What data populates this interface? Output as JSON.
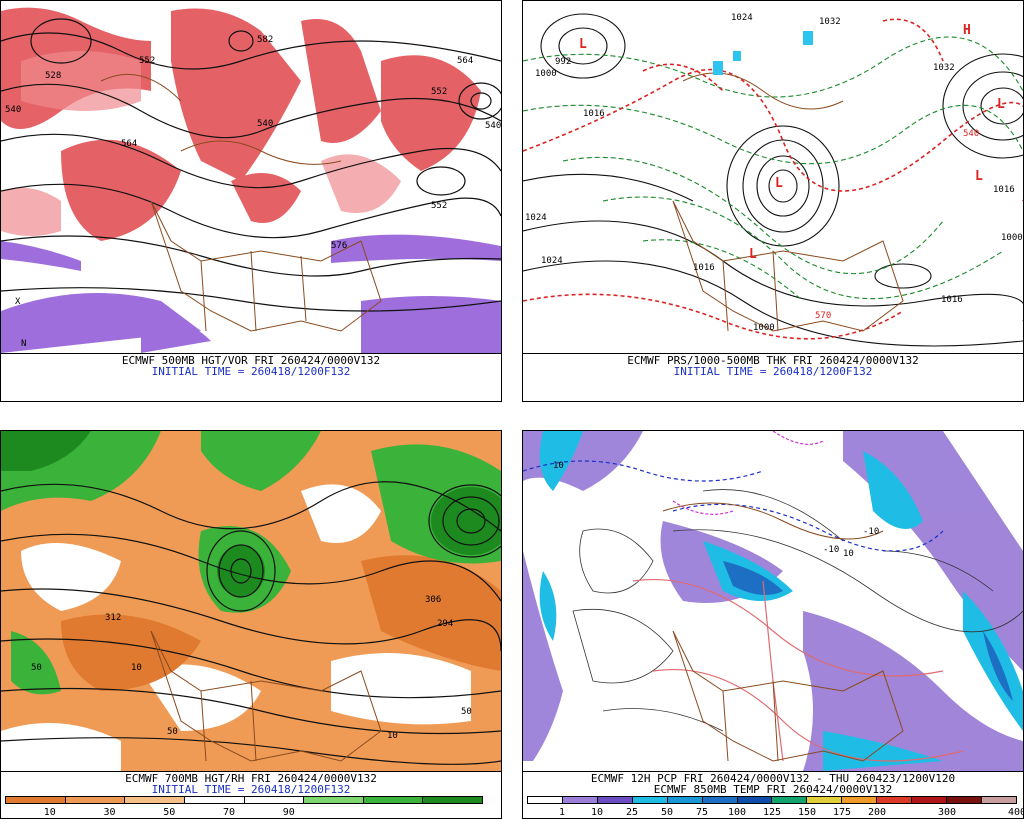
{
  "panels": {
    "tl": {
      "line1": "ECMWF 500MB HGT/VOR FRI 260424/0000V132",
      "line2": "INITIAL TIME = 260418/1200F132",
      "labels": [
        "528",
        "552",
        "540",
        "582",
        "564",
        "552",
        "540",
        "540",
        "564",
        "576",
        "552",
        "N",
        "X"
      ]
    },
    "tr": {
      "line1": "ECMWF PRS/1000-500MB THK FRI 260424/0000V132",
      "line2": "INITIAL TIME = 260418/1200F132",
      "labels": [
        "1024",
        "1032",
        "1032",
        "992",
        "1000",
        "1016",
        "1024",
        "1016",
        "1016",
        "1016",
        "1000",
        "1024",
        "1000",
        "540",
        "570",
        "L",
        "L",
        "L",
        "L",
        "L",
        "H"
      ]
    },
    "bl": {
      "line1": "ECMWF 700MB HGT/RH FRI 260424/0000V132",
      "line2": "INITIAL TIME = 260418/1200F132",
      "labels": [
        "50",
        "10",
        "312",
        "294",
        "306",
        "50",
        "10",
        "50"
      ],
      "scale": {
        "colors": [
          "#e07a30",
          "#f09b55",
          "#f6c189",
          "#ffffff",
          "#ffffff",
          "#7fd670",
          "#3bb23a",
          "#1c8a1f"
        ],
        "ticks": [
          "10",
          "30",
          "50",
          "70",
          "90"
        ]
      }
    },
    "br": {
      "line1": "ECMWF 12H PCP FRI 260424/0000V132 - THU 260423/1200V120",
      "line2": "ECMWF 850MB TEMP FRI 260424/0000V132",
      "labels": [
        "10",
        "-10",
        "-10",
        "10"
      ],
      "scale": {
        "colors": [
          "#ffffff",
          "#9b7fd8",
          "#6a4fc4",
          "#1fbde5",
          "#1a97d6",
          "#1c6fc2",
          "#0f4ea8",
          "#14a36c",
          "#e0d13a",
          "#f09b28",
          "#dd3a26",
          "#b01414",
          "#7a1111",
          "#c9a0a0"
        ],
        "ticks": [
          "1",
          "10",
          "25",
          "50",
          "75",
          "100",
          "125",
          "150",
          "175",
          "200",
          "300",
          "400"
        ]
      }
    }
  }
}
